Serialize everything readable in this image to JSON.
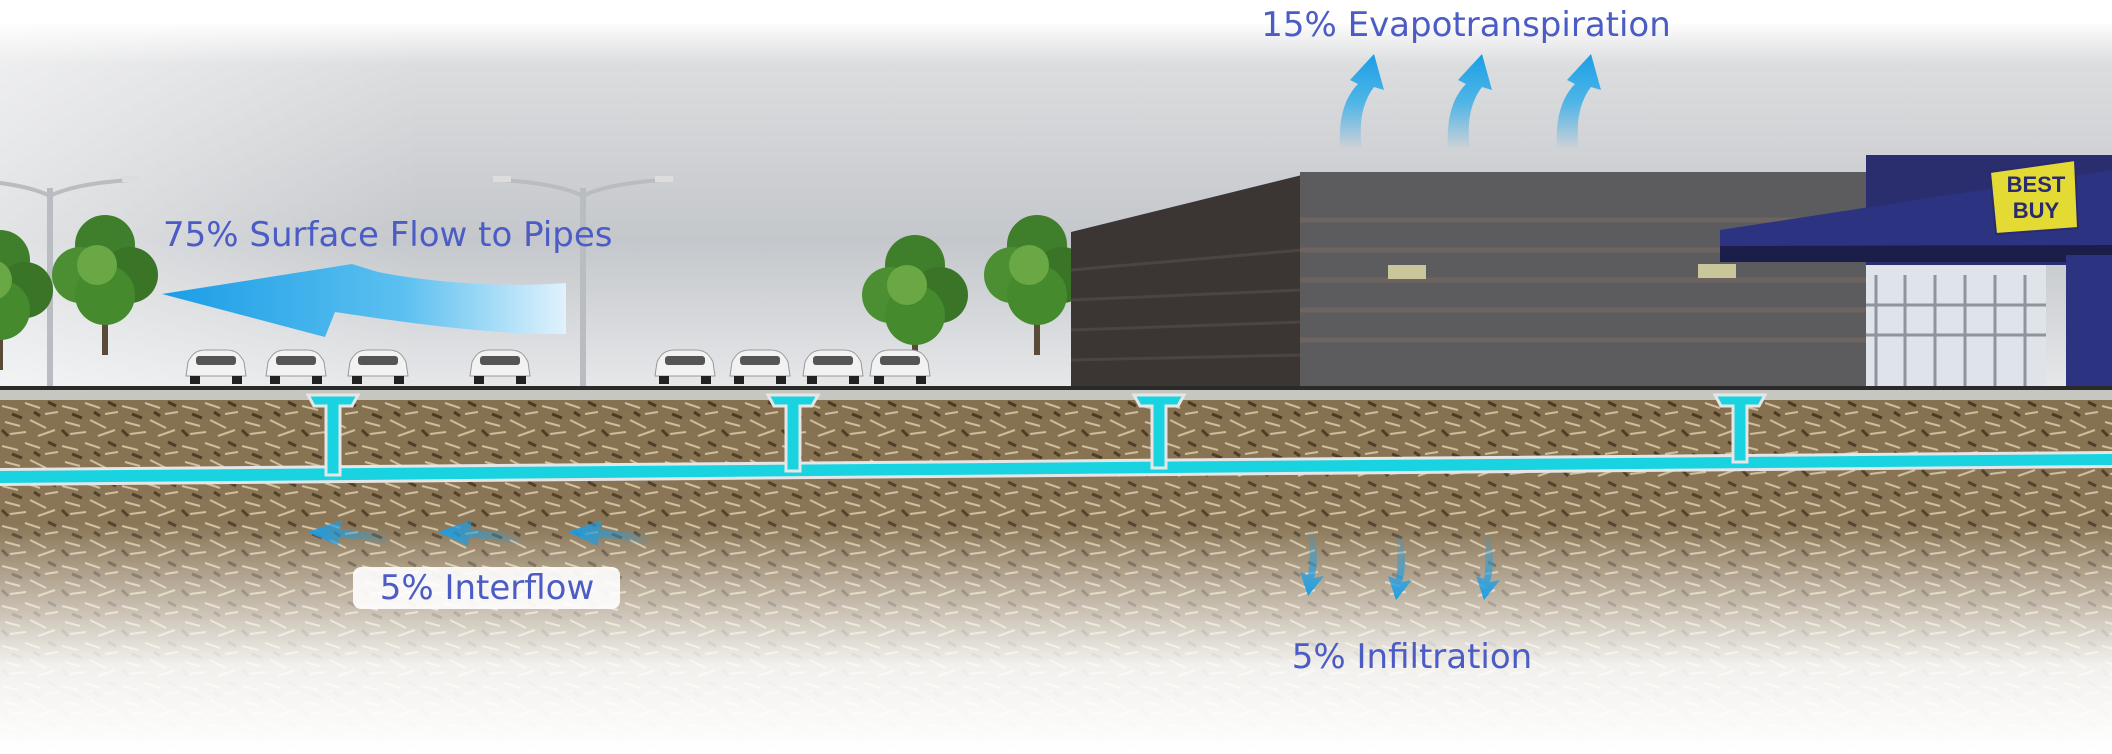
{
  "labels": {
    "evapotranspiration": "15% Evapotranspiration",
    "surface_flow": "75% Surface Flow to Pipes",
    "interflow": "5% Interflow",
    "infiltration": "5% Infiltration"
  },
  "sign": [
    "BEST",
    "BUY"
  ]
}
